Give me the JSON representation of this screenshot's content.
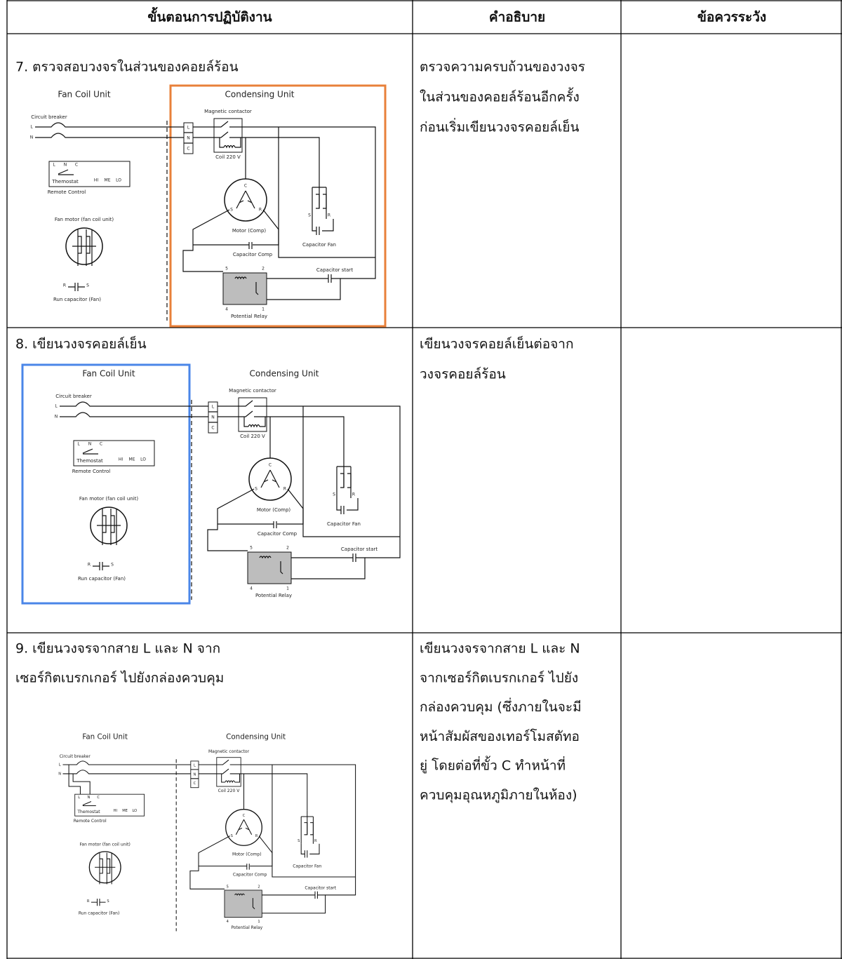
{
  "table": {
    "headers": [
      "ขั้นตอนการปฏิบัติงาน",
      "คำอธิบาย",
      "ข้อควรระวัง"
    ],
    "rows": [
      {
        "step": [
          "7. ตรวจสอบวงจรในส่วนของคอยล์ร้อน"
        ],
        "description": [
          "ตรวจความครบถ้วนของวงจร",
          "ในส่วนของคอยล์ร้อนอีกครั้ง",
          "ก่อนเริ่มเขียนวงจรคอยล์เย็น"
        ]
      },
      {
        "step": [
          "8.  เขียนวงจรคอยล์เย็น"
        ],
        "description": [
          "เขียนวงจรคอยล์เย็นต่อจาก",
          "วงจรคอยล์ร้อน"
        ]
      },
      {
        "step": [
          "9. เขียนวงจรจากสาย L และ N จาก",
          "เซอร์กิตเบรกเกอร์ ไปยังกล่องควบคุม"
        ],
        "description": [
          "เขียนวงจรจากสาย L และ N",
          "จากเซอร์กิตเบรกเกอร์ ไปยัง",
          "กล่องควบคุม (ซึ่งภายในจะมี",
          "หน้าสัมผัสของเทอร์โมสตัทอ",
          "ยู่ โดยต่อที่ขั้ว C ทำหน้าที่",
          "ควบคุมอุณหภูมิภายในห้อง)"
        ]
      }
    ]
  },
  "diagram_labels": {
    "fan_coil_unit": "Fan Coil Unit",
    "condensing_unit": "Condensing Unit",
    "circuit_breaker": "Circuit breaker",
    "line_labels": [
      "L",
      "N"
    ],
    "terminals": [
      "L",
      "N",
      "C"
    ],
    "magnetic_contactor": "Magnetic contactor",
    "coil": "Coil 220 V",
    "thermostat_terminals": [
      "L",
      "N",
      "C"
    ],
    "thermostat": "Themostat",
    "speeds": [
      "HI",
      "ME",
      "LO"
    ],
    "remote_control": "Remote Control",
    "fan_motor": "Fan motor (fan coil unit)",
    "run_cap_terminals": [
      "R",
      "S"
    ],
    "run_capacitor": "Run capacitor (Fan)",
    "motor_terminals": [
      "C",
      "S",
      "R"
    ],
    "motor_comp": "Motor (Comp)",
    "fan_cap_terminals": [
      "S",
      "R"
    ],
    "capacitor_fan": "Capacitor Fan",
    "capacitor_comp": "Capacitor Comp",
    "capacitor_start": "Capacitor start",
    "relay_terminals": [
      "5",
      "2",
      "4",
      "1"
    ],
    "potential_relay": "Potential Relay"
  }
}
